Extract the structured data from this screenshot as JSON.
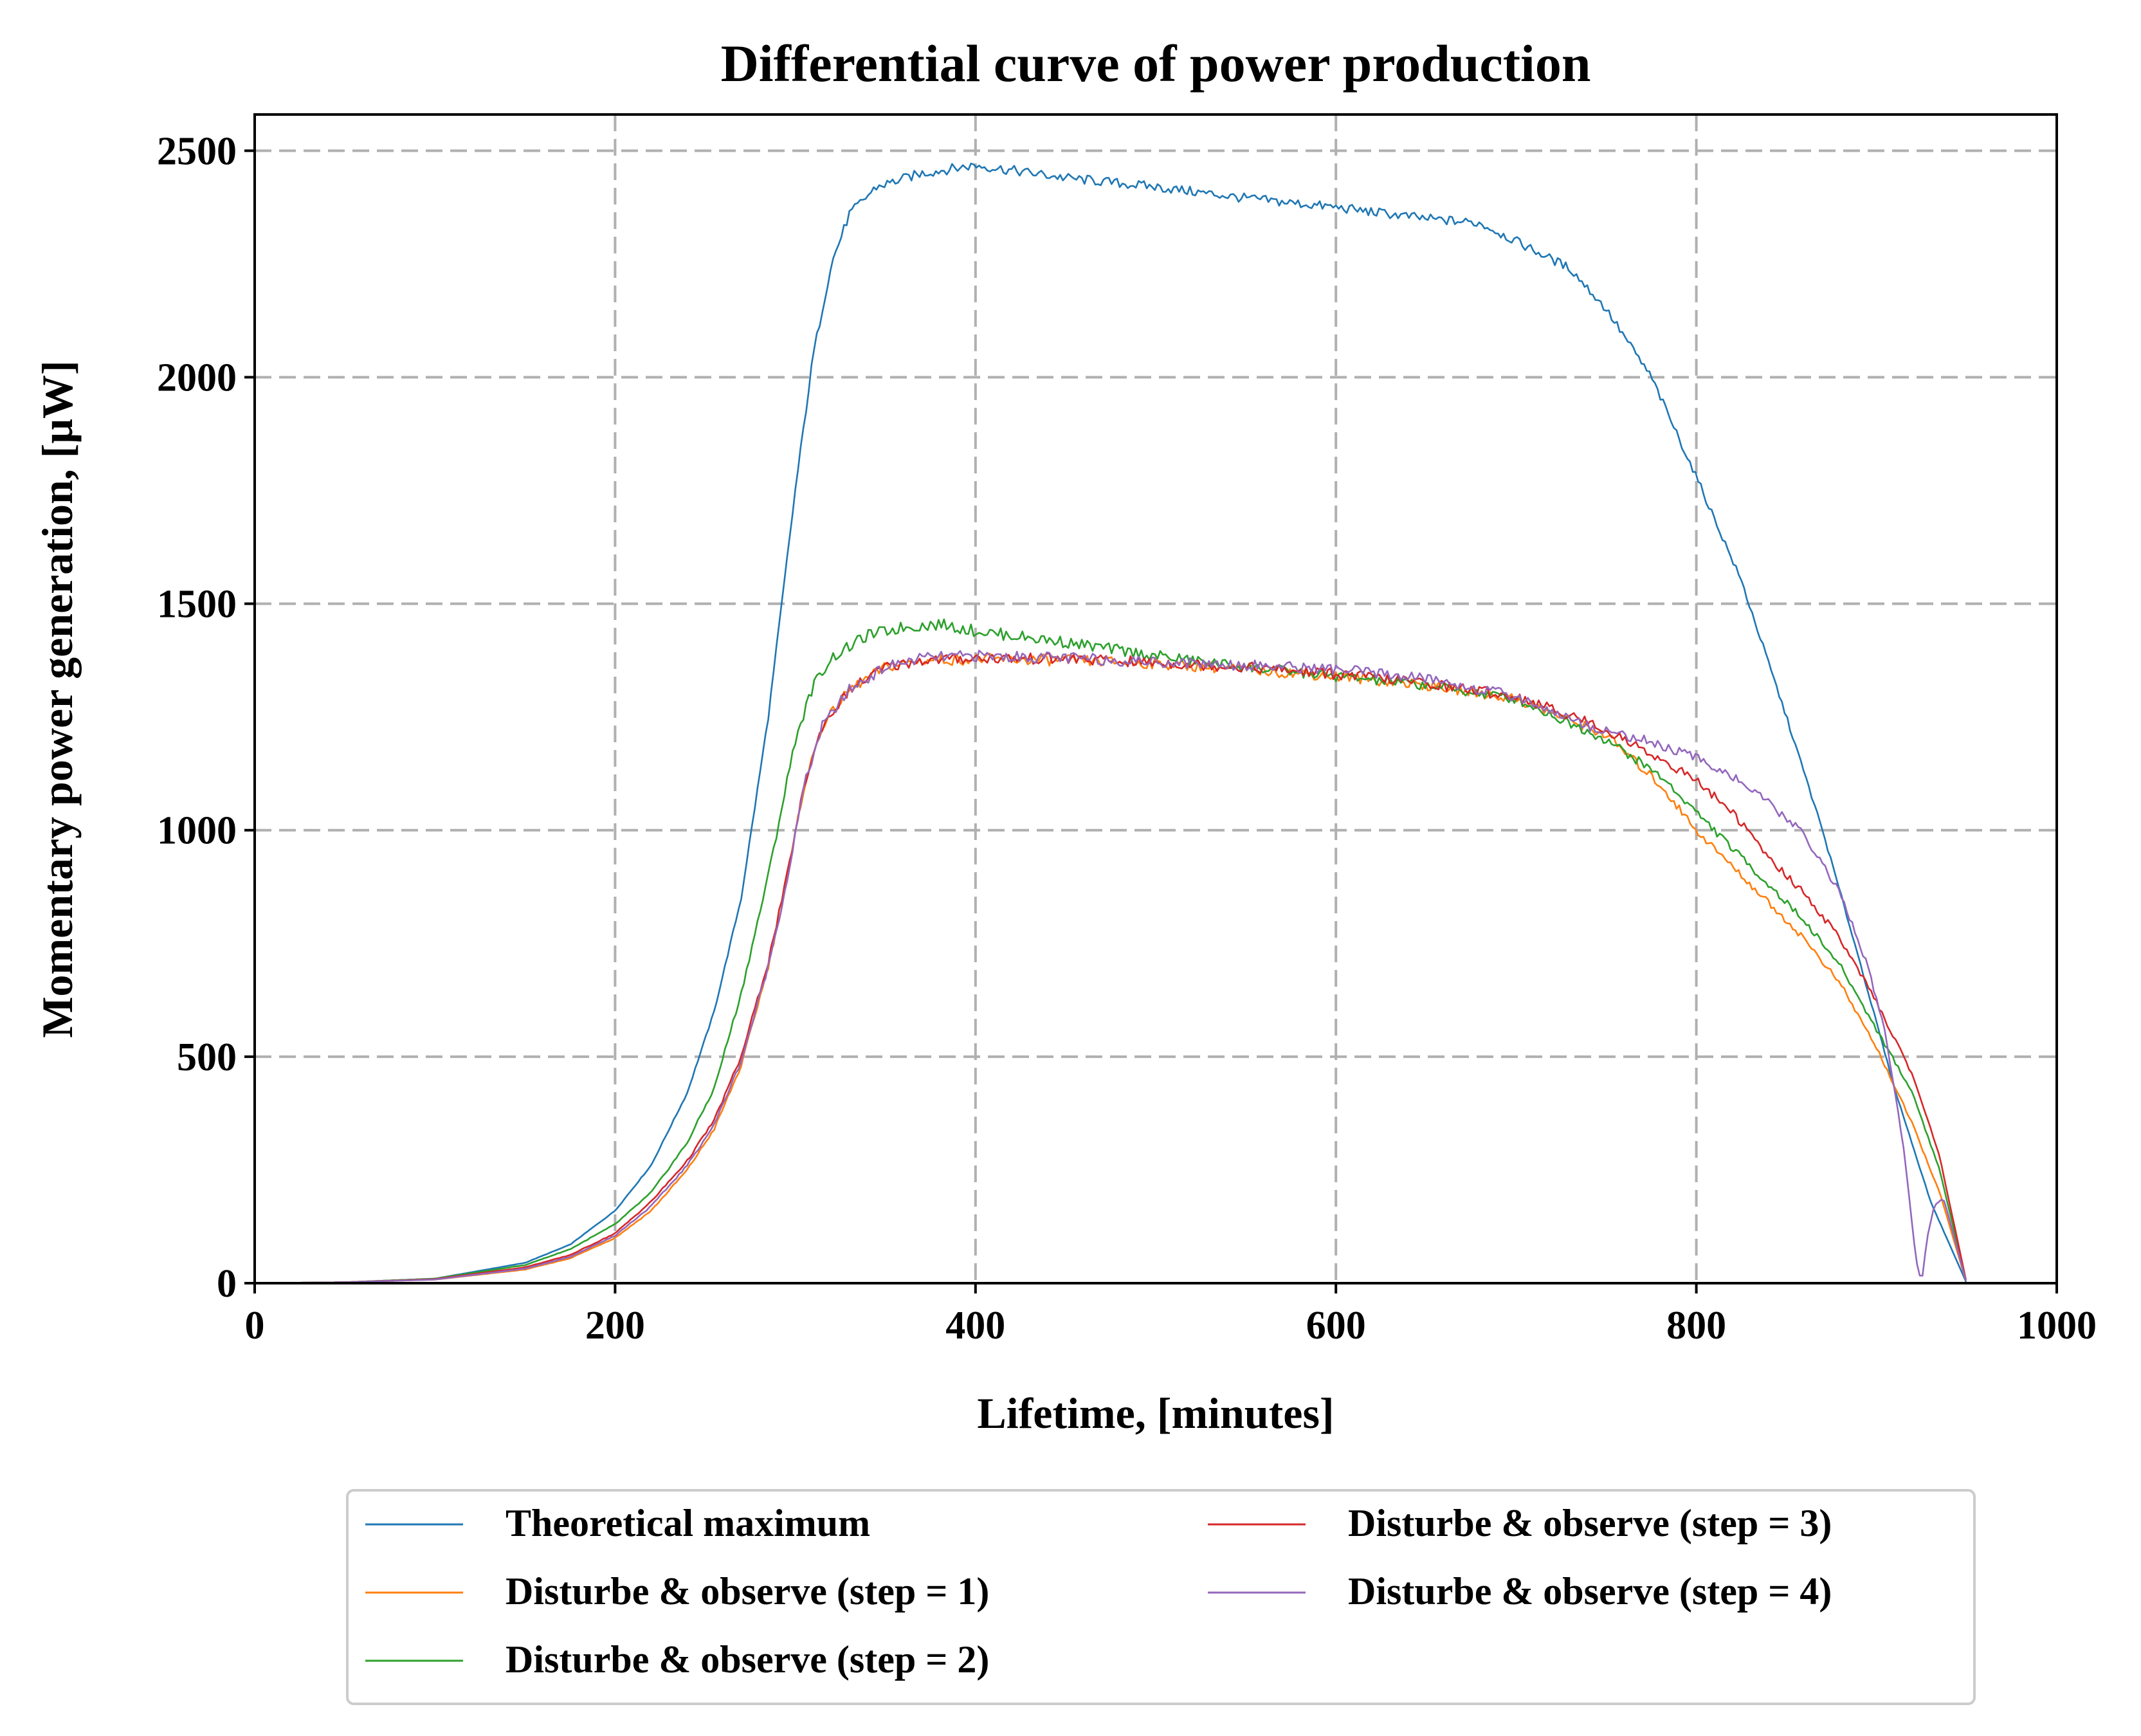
{
  "chart_data": {
    "type": "line",
    "title": "Differential curve of power production",
    "xlabel": "Lifetime, [minutes]",
    "ylabel": "Momentary power generation, [μW]",
    "xlim": [
      0,
      1000
    ],
    "ylim": [
      0,
      2580
    ],
    "xticks": [
      0,
      200,
      400,
      600,
      800,
      1000
    ],
    "yticks": [
      0,
      500,
      1000,
      1500,
      2000,
      2500
    ],
    "grid": true,
    "legend_position": "below",
    "series": [
      {
        "name": "Theoretical maximum",
        "color": "#1f77b4",
        "points": [
          [
            0,
            0
          ],
          [
            50,
            2
          ],
          [
            100,
            10
          ],
          [
            150,
            45
          ],
          [
            175,
            85
          ],
          [
            200,
            160
          ],
          [
            220,
            260
          ],
          [
            240,
            420
          ],
          [
            255,
            600
          ],
          [
            270,
            850
          ],
          [
            285,
            1250
          ],
          [
            300,
            1750
          ],
          [
            310,
            2050
          ],
          [
            320,
            2250
          ],
          [
            330,
            2360
          ],
          [
            345,
            2420
          ],
          [
            370,
            2450
          ],
          [
            400,
            2468
          ],
          [
            450,
            2440
          ],
          [
            500,
            2420
          ],
          [
            550,
            2395
          ],
          [
            600,
            2375
          ],
          [
            650,
            2350
          ],
          [
            680,
            2340
          ],
          [
            700,
            2300
          ],
          [
            730,
            2240
          ],
          [
            750,
            2150
          ],
          [
            775,
            2000
          ],
          [
            800,
            1780
          ],
          [
            825,
            1550
          ],
          [
            850,
            1250
          ],
          [
            870,
            1000
          ],
          [
            890,
            720
          ],
          [
            910,
            430
          ],
          [
            930,
            180
          ],
          [
            950,
            0
          ]
        ]
      },
      {
        "name": "Disturbe & observe (step = 1)",
        "color": "#ff7f0e",
        "points": [
          [
            0,
            0
          ],
          [
            50,
            2
          ],
          [
            100,
            8
          ],
          [
            150,
            30
          ],
          [
            175,
            55
          ],
          [
            200,
            100
          ],
          [
            220,
            160
          ],
          [
            240,
            250
          ],
          [
            255,
            340
          ],
          [
            270,
            480
          ],
          [
            285,
            700
          ],
          [
            295,
            880
          ],
          [
            305,
            1100
          ],
          [
            315,
            1230
          ],
          [
            330,
            1310
          ],
          [
            350,
            1360
          ],
          [
            370,
            1375
          ],
          [
            400,
            1378
          ],
          [
            450,
            1375
          ],
          [
            500,
            1368
          ],
          [
            550,
            1355
          ],
          [
            600,
            1340
          ],
          [
            650,
            1320
          ],
          [
            700,
            1290
          ],
          [
            750,
            1210
          ],
          [
            780,
            1100
          ],
          [
            800,
            1000
          ],
          [
            820,
            920
          ],
          [
            840,
            840
          ],
          [
            860,
            760
          ],
          [
            880,
            660
          ],
          [
            900,
            520
          ],
          [
            920,
            350
          ],
          [
            935,
            200
          ],
          [
            950,
            0
          ]
        ]
      },
      {
        "name": "Disturbe & observe (step = 2)",
        "color": "#2ca02c",
        "points": [
          [
            0,
            0
          ],
          [
            50,
            2
          ],
          [
            100,
            10
          ],
          [
            150,
            40
          ],
          [
            175,
            75
          ],
          [
            200,
            130
          ],
          [
            220,
            200
          ],
          [
            240,
            310
          ],
          [
            255,
            430
          ],
          [
            270,
            640
          ],
          [
            285,
            900
          ],
          [
            300,
            1200
          ],
          [
            310,
            1320
          ],
          [
            320,
            1380
          ],
          [
            340,
            1430
          ],
          [
            360,
            1448
          ],
          [
            380,
            1455
          ],
          [
            400,
            1440
          ],
          [
            450,
            1415
          ],
          [
            500,
            1385
          ],
          [
            550,
            1360
          ],
          [
            600,
            1340
          ],
          [
            650,
            1320
          ],
          [
            700,
            1290
          ],
          [
            750,
            1200
          ],
          [
            780,
            1120
          ],
          [
            800,
            1040
          ],
          [
            820,
            960
          ],
          [
            840,
            880
          ],
          [
            860,
            800
          ],
          [
            880,
            700
          ],
          [
            900,
            560
          ],
          [
            920,
            420
          ],
          [
            935,
            250
          ],
          [
            950,
            0
          ]
        ]
      },
      {
        "name": "Disturbe & observe (step = 3)",
        "color": "#d62728",
        "points": [
          [
            0,
            0
          ],
          [
            50,
            2
          ],
          [
            100,
            9
          ],
          [
            150,
            35
          ],
          [
            175,
            62
          ],
          [
            200,
            110
          ],
          [
            220,
            180
          ],
          [
            240,
            270
          ],
          [
            255,
            360
          ],
          [
            270,
            500
          ],
          [
            285,
            710
          ],
          [
            295,
            890
          ],
          [
            305,
            1100
          ],
          [
            315,
            1230
          ],
          [
            330,
            1310
          ],
          [
            350,
            1360
          ],
          [
            370,
            1375
          ],
          [
            400,
            1380
          ],
          [
            450,
            1378
          ],
          [
            500,
            1370
          ],
          [
            550,
            1360
          ],
          [
            600,
            1345
          ],
          [
            650,
            1325
          ],
          [
            700,
            1295
          ],
          [
            740,
            1240
          ],
          [
            770,
            1180
          ],
          [
            800,
            1110
          ],
          [
            820,
            1040
          ],
          [
            840,
            940
          ],
          [
            860,
            860
          ],
          [
            880,
            760
          ],
          [
            900,
            620
          ],
          [
            920,
            460
          ],
          [
            935,
            280
          ],
          [
            950,
            0
          ]
        ]
      },
      {
        "name": "Disturbe & observe (step = 4)",
        "color": "#9467bd",
        "points": [
          [
            0,
            0
          ],
          [
            50,
            2
          ],
          [
            100,
            8
          ],
          [
            150,
            32
          ],
          [
            175,
            58
          ],
          [
            200,
            105
          ],
          [
            220,
            170
          ],
          [
            240,
            260
          ],
          [
            255,
            350
          ],
          [
            270,
            490
          ],
          [
            285,
            700
          ],
          [
            295,
            880
          ],
          [
            305,
            1100
          ],
          [
            315,
            1230
          ],
          [
            330,
            1310
          ],
          [
            350,
            1360
          ],
          [
            370,
            1380
          ],
          [
            400,
            1385
          ],
          [
            450,
            1380
          ],
          [
            500,
            1372
          ],
          [
            550,
            1365
          ],
          [
            600,
            1355
          ],
          [
            650,
            1335
          ],
          [
            700,
            1295
          ],
          [
            740,
            1230
          ],
          [
            770,
            1200
          ],
          [
            800,
            1160
          ],
          [
            820,
            1120
          ],
          [
            840,
            1060
          ],
          [
            860,
            990
          ],
          [
            880,
            860
          ],
          [
            895,
            700
          ],
          [
            905,
            550
          ],
          [
            915,
            300
          ],
          [
            922,
            50
          ],
          [
            925,
            0
          ],
          [
            928,
            100
          ],
          [
            932,
            170
          ],
          [
            937,
            190
          ],
          [
            950,
            0
          ]
        ]
      }
    ]
  }
}
